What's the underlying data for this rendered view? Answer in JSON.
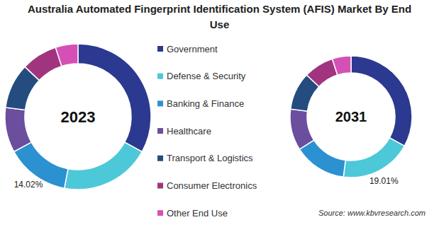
{
  "chart_data": {
    "type": "pie",
    "title": "Australia Automated Fingerprint Identification System (AFIS) Market By End Use",
    "categories": [
      "Government",
      "Defense & Security",
      "Banking & Finance",
      "Healthcare",
      "Transport & Logistics",
      "Consumer Electronics",
      "Other End Use"
    ],
    "colors": [
      "#2b3990",
      "#4dc8d8",
      "#2b91d1",
      "#6b4e9e",
      "#244c7e",
      "#a0347f",
      "#d550b5"
    ],
    "series": [
      {
        "name": "2023",
        "values": [
          33,
          20,
          14.02,
          10,
          10,
          8,
          4.98
        ],
        "value_labels": [
          null,
          null,
          "14.02%",
          null,
          null,
          null,
          null
        ]
      },
      {
        "name": "2031",
        "values": [
          33,
          19.01,
          14,
          11,
          10,
          8,
          4.99
        ],
        "value_labels": [
          null,
          "19.01%",
          null,
          null,
          null,
          null,
          null
        ]
      }
    ],
    "legend": "center",
    "annotations": [
      "Source: www.kbvresearch.com"
    ]
  }
}
